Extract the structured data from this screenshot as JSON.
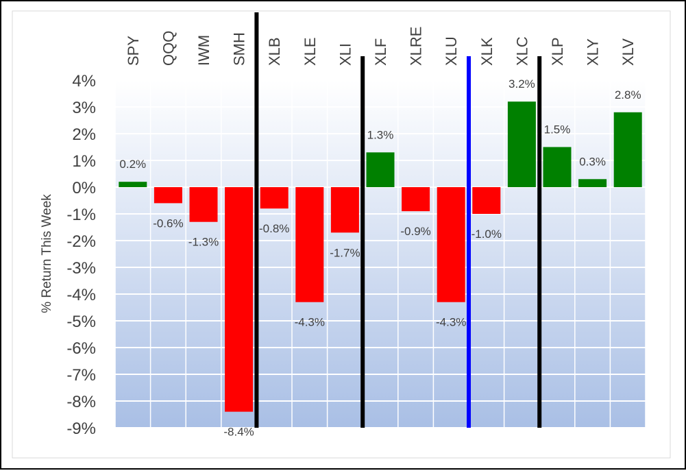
{
  "chart_data": {
    "type": "bar",
    "title": "",
    "xlabel": "",
    "ylabel": "% Return This Week",
    "categories": [
      "SPY",
      "QQQ",
      "IWM",
      "SMH",
      "XLB",
      "XLE",
      "XLI",
      "XLF",
      "XLRE",
      "XLU",
      "XLK",
      "XLC",
      "XLP",
      "XLY",
      "XLV"
    ],
    "values": [
      0.2,
      -0.6,
      -1.3,
      -8.4,
      -0.8,
      -4.3,
      -1.7,
      1.3,
      -0.9,
      -4.3,
      -1.0,
      3.2,
      1.5,
      0.3,
      2.8
    ],
    "data_labels": [
      "0.2%",
      "-0.6%",
      "-1.3%",
      "-8.4%",
      "-0.8%",
      "-4.3%",
      "-1.7%",
      "1.3%",
      "-0.9%",
      "-4.3%",
      "-1.0%",
      "3.2%",
      "1.5%",
      "0.3%",
      "2.8%"
    ],
    "ylim": [
      -9,
      4
    ],
    "yticks": [
      4,
      3,
      2,
      1,
      0,
      -1,
      -2,
      -3,
      -4,
      -5,
      -6,
      -7,
      -8,
      -9
    ],
    "ytick_labels": [
      "4%",
      "3%",
      "2%",
      "1%",
      "0%",
      "-1%",
      "-2%",
      "-3%",
      "-4%",
      "-5%",
      "-6%",
      "-7%",
      "-8%",
      "-9%"
    ],
    "grid": true,
    "legend": "none",
    "colors": {
      "positive": "#008000",
      "negative": "#ff0000",
      "separator": "#000000",
      "highlight_separator": "#0000ff",
      "gradient_top": "#ffffff",
      "gradient_bottom": "#a9bfe5",
      "grid": "#ffffff"
    },
    "separators": [
      {
        "after_index": 3,
        "color": "#000000"
      },
      {
        "after_index": 6,
        "color": "#000000"
      },
      {
        "after_index": 9,
        "color": "#0000ff"
      },
      {
        "after_index": 11,
        "color": "#000000"
      }
    ]
  }
}
